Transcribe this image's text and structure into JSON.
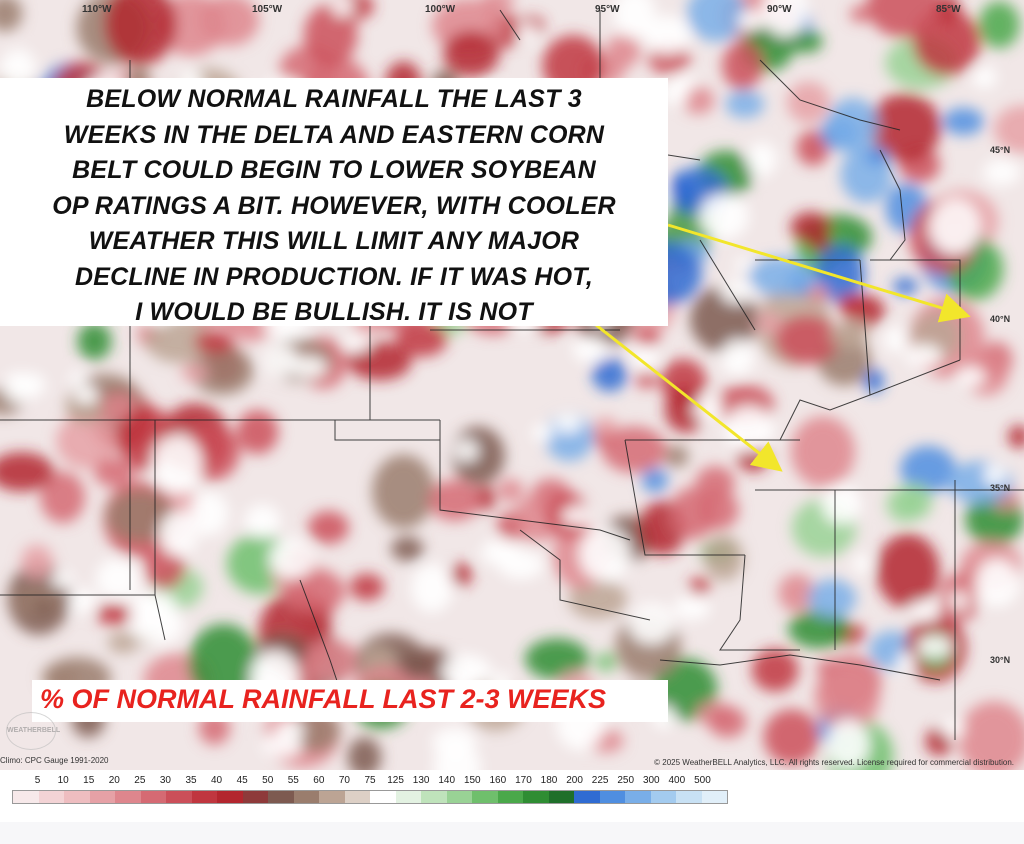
{
  "map": {
    "longitude_labels": [
      "110°W",
      "105°W",
      "100°W",
      "95°W",
      "90°W",
      "85°W"
    ],
    "latitude_labels": [
      "45°N",
      "40°N",
      "35°N",
      "30°N"
    ],
    "headline": "BELOW NORMAL RAINFALL THE LAST 3\nWEEKS IN THE DELTA AND EASTERN CORN\nBELT COULD BEGIN TO LOWER SOYBEAN\nOP RATINGS A BIT. HOWEVER, WITH COOLER\nWEATHER THIS WILL LIMIT ANY MAJOR\nDECLINE IN PRODUCTION. IF IT WAS HOT,\nI WOULD BE BULLISH. IT IS NOT",
    "caption": "% OF NORMAL RAINFALL LAST 2-3 WEEKS",
    "climatology_note": "Climo: CPC Gauge 1991-2020",
    "copyright": "© 2025 WeatherBELL Analytics, LLC. All rights reserved. License required for commercial distribution.",
    "logo_text": "WEATHERBELL",
    "arrow_color": "#f2e62b",
    "caption_color": "#e8231f"
  },
  "legend": {
    "ticks": [
      "5",
      "10",
      "15",
      "20",
      "25",
      "30",
      "35",
      "40",
      "45",
      "50",
      "55",
      "60",
      "70",
      "75",
      "125",
      "130",
      "140",
      "150",
      "160",
      "170",
      "180",
      "200",
      "225",
      "250",
      "300",
      "400",
      "500"
    ],
    "colors": [
      "#f7e9ea",
      "#f3d3d5",
      "#eebdc0",
      "#e6a1a6",
      "#de868d",
      "#d56a73",
      "#cb4f59",
      "#c0363f",
      "#b3262e",
      "#8e3a3a",
      "#7d5a50",
      "#9a7d6d",
      "#bca494",
      "#ddd0c6",
      "#ffffff",
      "#e3f2e2",
      "#bfe3bb",
      "#99d295",
      "#6fbf6c",
      "#4aa84a",
      "#2f8d33",
      "#1f6f2a",
      "#2f6bd2",
      "#4f8ee0",
      "#79aee8",
      "#a3cbef",
      "#c8e1f4",
      "#e1eff9"
    ]
  }
}
